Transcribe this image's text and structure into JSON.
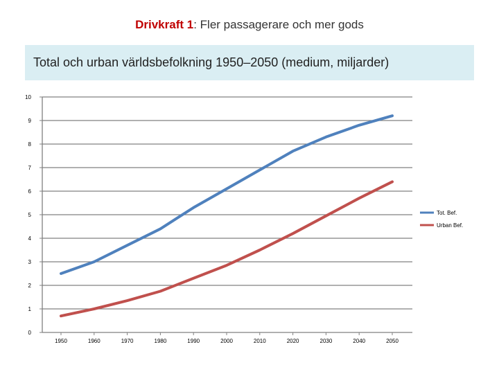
{
  "slide": {
    "title_emph": "Drivkraft 1",
    "title_rest": ": Fler passagerare och mer gods"
  },
  "chart_header": "Total och urban världsbefolkning 1950–2050 (medium, miljarder)",
  "colors": {
    "total": "#4f81bd",
    "urban": "#c0504d",
    "axis": "#808080",
    "header_bg": "#daeef3"
  },
  "chart_data": {
    "type": "line",
    "title": "Total och urban världsbefolkning 1950–2050 (medium, miljarder)",
    "xlabel": "",
    "ylabel": "",
    "x": [
      1950,
      1960,
      1970,
      1980,
      1990,
      2000,
      2010,
      2020,
      2030,
      2040,
      2050
    ],
    "ylim": [
      0,
      10
    ],
    "yticks": [
      0,
      1,
      2,
      3,
      4,
      5,
      6,
      7,
      8,
      9,
      10
    ],
    "grid": true,
    "legend_position": "right",
    "series": [
      {
        "name": "Tot. Bef.",
        "color": "#4f81bd",
        "values": [
          2.5,
          3.0,
          3.7,
          4.4,
          5.3,
          6.1,
          6.9,
          7.7,
          8.3,
          8.8,
          9.2
        ]
      },
      {
        "name": "Urban Bef.",
        "color": "#c0504d",
        "values": [
          0.7,
          1.0,
          1.35,
          1.75,
          2.3,
          2.85,
          3.5,
          4.2,
          4.95,
          5.7,
          6.4
        ]
      }
    ]
  }
}
